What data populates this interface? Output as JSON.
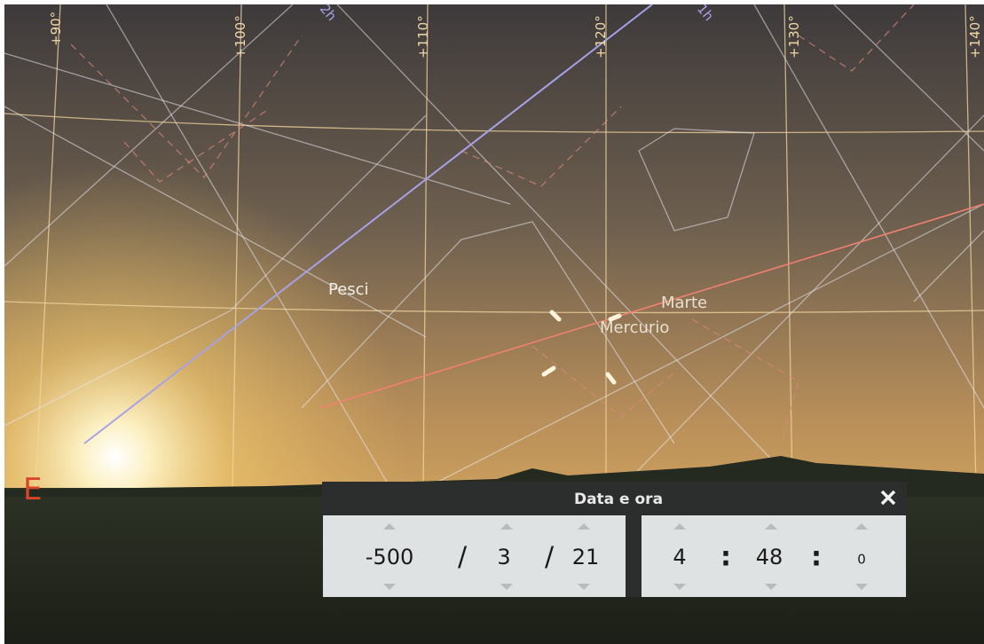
{
  "sky": {
    "grid_labels": [
      "+90°",
      "+100°",
      "+110°",
      "+120°",
      "+130°",
      "+140°"
    ],
    "hour_labels": [
      "2h",
      "1h"
    ],
    "object_labels": [
      "Pesci",
      "Marte",
      "Mercurio"
    ],
    "cardinal": "E"
  },
  "dialog": {
    "title": "Data e ora",
    "date": {
      "year": "-500",
      "sep1": "/",
      "month": "3",
      "sep2": "/",
      "day": "21"
    },
    "time": {
      "hour": "4",
      "sep1": ":",
      "minute": "48",
      "sep2": ":",
      "second": "0"
    }
  }
}
